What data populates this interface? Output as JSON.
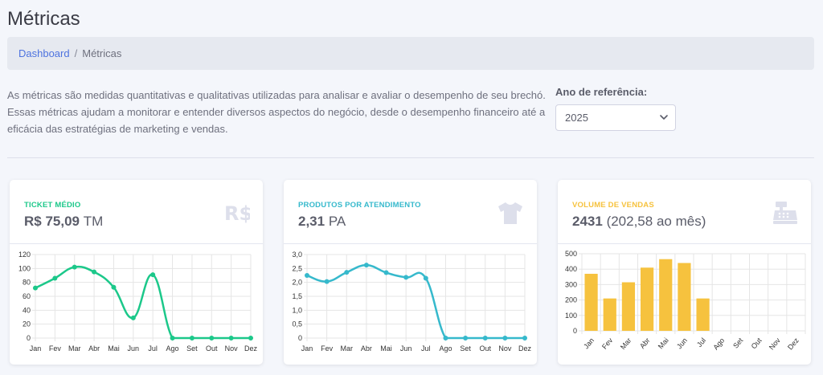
{
  "page": {
    "title": "Métricas"
  },
  "breadcrumb": {
    "home": "Dashboard",
    "separator": "/",
    "current": "Métricas"
  },
  "intro": {
    "text": "As métricas são medidas quantitativas e qualitativas utilizadas para analisar e avaliar o desempenho de seu brechó. Essas métricas ajudam a monitorar e entender diversos aspectos do negócio, desde o desempenho financeiro até a eficácia das estratégias de marketing e vendas."
  },
  "year": {
    "label": "Ano de referência:",
    "value": "2025"
  },
  "cards": {
    "ticket": {
      "kicker": "TICKET MÉDIO",
      "value": "R$ 75,09",
      "unit": "TM",
      "color": "#1cc88a",
      "icon": "currency-real-icon"
    },
    "products": {
      "kicker": "PRODUTOS POR ATENDIMENTO",
      "value": "2,31",
      "unit": "PA",
      "color": "#36b9cc",
      "icon": "tshirt-icon"
    },
    "sales": {
      "kicker": "VOLUME DE VENDAS",
      "value": "2431",
      "unit": "(202,58 ao mês)",
      "color": "#f6c23e",
      "icon": "cash-register-icon"
    }
  },
  "chart_data": [
    {
      "type": "line",
      "title": "TICKET MÉDIO",
      "categories": [
        "Jan",
        "Fev",
        "Mar",
        "Abr",
        "Mai",
        "Jun",
        "Jul",
        "Ago",
        "Set",
        "Out",
        "Nov",
        "Dez"
      ],
      "values": [
        72,
        86,
        102,
        95,
        73,
        29,
        91,
        0,
        0,
        0,
        0,
        0
      ],
      "ylim": [
        0,
        120
      ],
      "yticks": [
        0,
        20,
        40,
        60,
        80,
        100,
        120
      ],
      "ytick_labels": [
        "0",
        "20",
        "40",
        "60",
        "80",
        "100",
        "120"
      ],
      "color": "#1cc88a",
      "grid": true
    },
    {
      "type": "line",
      "title": "PRODUTOS POR ATENDIMENTO",
      "categories": [
        "Jan",
        "Fev",
        "Mar",
        "Abr",
        "Mai",
        "Jun",
        "Jul",
        "Ago",
        "Set",
        "Out",
        "Nov",
        "Dez"
      ],
      "values": [
        2.25,
        2.03,
        2.36,
        2.62,
        2.35,
        2.18,
        2.15,
        0,
        0,
        0,
        0,
        0
      ],
      "ylim": [
        0,
        3
      ],
      "yticks": [
        0,
        0.5,
        1,
        1.5,
        2,
        2.5,
        3
      ],
      "ytick_labels": [
        "0",
        "0,5",
        "1,0",
        "1,5",
        "2,0",
        "2,5",
        "3,0"
      ],
      "color": "#36b9cc",
      "grid": true
    },
    {
      "type": "bar",
      "title": "VOLUME DE VENDAS",
      "categories": [
        "Jan",
        "Fev",
        "Mar",
        "Abr",
        "Mai",
        "Jun",
        "Jul",
        "Ago",
        "Set",
        "Out",
        "Nov",
        "Dez"
      ],
      "values": [
        370,
        210,
        315,
        410,
        465,
        440,
        210,
        0,
        0,
        0,
        0,
        0
      ],
      "ylim": [
        0,
        500
      ],
      "yticks": [
        0,
        100,
        200,
        300,
        400,
        500
      ],
      "ytick_labels": [
        "0",
        "100",
        "200",
        "300",
        "400",
        "500"
      ],
      "color": "#f6c23e",
      "grid": true
    }
  ]
}
